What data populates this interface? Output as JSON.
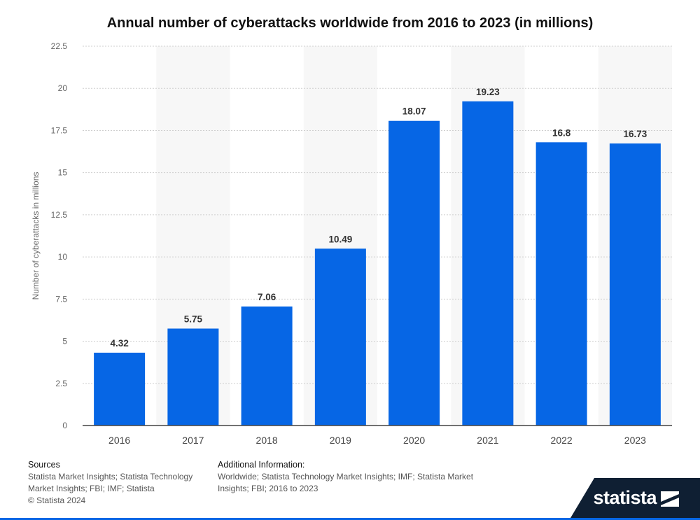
{
  "chart_data": {
    "type": "bar",
    "title": "Annual number of cyberattacks worldwide from 2016 to 2023 (in millions)",
    "ylabel": "Number of cyberattacks in millions",
    "xlabel": "",
    "categories": [
      "2016",
      "2017",
      "2018",
      "2019",
      "2020",
      "2021",
      "2022",
      "2023"
    ],
    "values": [
      4.32,
      5.75,
      7.06,
      10.49,
      18.07,
      19.23,
      16.8,
      16.73
    ],
    "value_labels": [
      "4.32",
      "5.75",
      "7.06",
      "10.49",
      "18.07",
      "19.23",
      "16.8",
      "16.73"
    ],
    "ylim": [
      0,
      22.5
    ],
    "yticks": [
      "0",
      "2.5",
      "5",
      "7.5",
      "10",
      "12.5",
      "15",
      "17.5",
      "20",
      "22.5"
    ],
    "grid": true,
    "bar_color": "#0666e5"
  },
  "footer": {
    "sources_heading": "Sources",
    "sources_line1": "Statista Market Insights; Statista Technology",
    "sources_line2": "Market Insights; FBI; IMF; Statista",
    "copyright": "© Statista 2024",
    "info_heading": "Additional Information:",
    "info_line1": "Worldwide; Statista Technology Market Insights; IMF; Statista Market",
    "info_line2": "Insights; FBI; 2016 to 2023"
  },
  "brand": {
    "name": "statista",
    "logo_icon": "statista-logo-icon",
    "color": "#0f1f33"
  }
}
